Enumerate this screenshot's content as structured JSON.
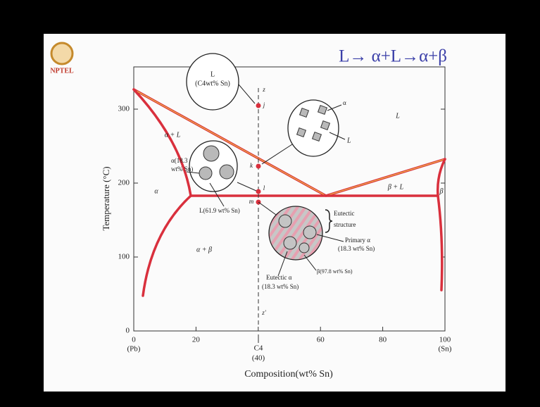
{
  "slide": {
    "logo": "NPTEL",
    "formula": "L→ α+L→α+β"
  },
  "diagram": {
    "x_axis_title": "Composition(wt% Sn)",
    "y_axis_title": "Temperature (°C)",
    "x_tick_labels": [
      "0",
      "(Pb)",
      "20",
      "60",
      "80",
      "100",
      "(Sn)"
    ],
    "composition_marker": [
      "C4",
      "(40)"
    ],
    "y_tick_labels": [
      "0",
      "100",
      "200",
      "300"
    ],
    "regions": [
      "L",
      "α + L",
      "α",
      "α + β",
      "β + L",
      "β"
    ],
    "points": [
      "z",
      "j",
      "k",
      "l",
      "m",
      "z'"
    ],
    "callouts": {
      "liquid": [
        "L",
        "(C4wt% Sn)"
      ],
      "liquid_grains": [
        "α",
        "L"
      ],
      "alpha": [
        "α(18.3",
        "wt% Sn)"
      ],
      "liquid_eutectic": "L(61.9 wt% Sn)",
      "eutectic_structure": [
        "Eutectic",
        "structure"
      ],
      "primary": [
        "Primary α",
        "(18.3 wt% Sn)"
      ],
      "beta": "β(97.8 wt% Sn)",
      "eutectic_alpha": [
        "Eutectic α",
        "(18.3 wt% Sn)"
      ]
    }
  }
}
